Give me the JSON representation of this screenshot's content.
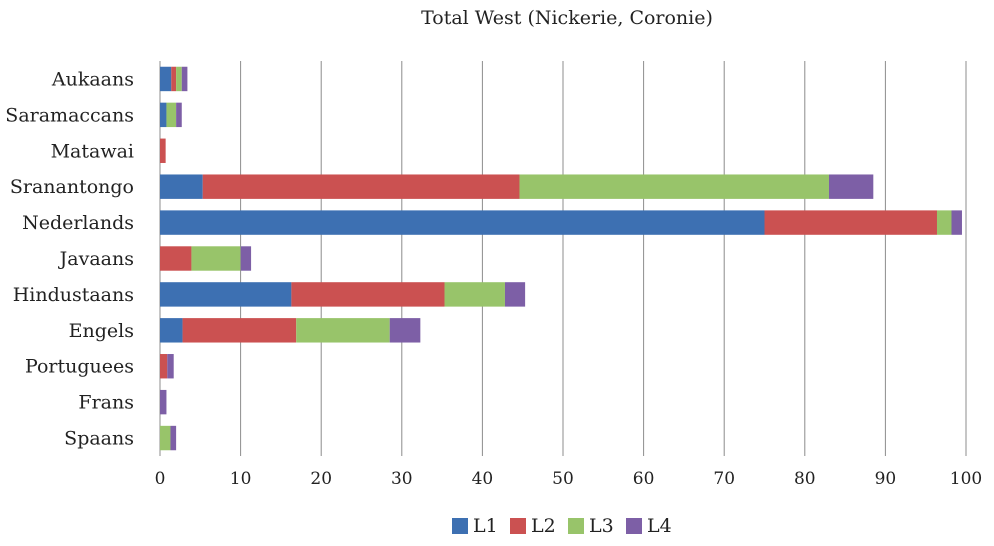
{
  "chart_data": {
    "type": "bar",
    "orientation": "horizontal",
    "stacked": true,
    "title": "Total West (Nickerie, Coronie)",
    "categories": [
      "Aukaans",
      "Saramaccans",
      "Matawai",
      "Sranantongo",
      "Nederlands",
      "Javaans",
      "Hindustaans",
      "Engels",
      "Portuguees",
      "Frans",
      "Spaans"
    ],
    "series": [
      {
        "name": "L1",
        "color": "#3d70b2",
        "values": [
          1.4,
          0.8,
          0.0,
          5.3,
          75.0,
          0.0,
          16.3,
          2.8,
          0.0,
          0.0,
          0.0
        ]
      },
      {
        "name": "L2",
        "color": "#cb5151",
        "values": [
          0.6,
          0.0,
          0.7,
          39.3,
          21.4,
          3.9,
          19.0,
          14.1,
          0.9,
          0.0,
          0.0
        ]
      },
      {
        "name": "L3",
        "color": "#98c46a",
        "values": [
          0.7,
          1.2,
          0.0,
          38.4,
          1.8,
          6.1,
          7.5,
          11.6,
          0.0,
          0.0,
          1.3
        ]
      },
      {
        "name": "L4",
        "color": "#7d5fa6",
        "values": [
          0.7,
          0.7,
          0.0,
          5.5,
          1.3,
          1.3,
          2.5,
          3.8,
          0.8,
          0.8,
          0.7
        ]
      }
    ],
    "xlim": [
      0,
      100
    ],
    "xticks": [
      0,
      10,
      20,
      30,
      40,
      50,
      60,
      70,
      80,
      90,
      100
    ],
    "grid": "vertical",
    "legend": "bottom-center",
    "xlabel": "",
    "ylabel": ""
  }
}
